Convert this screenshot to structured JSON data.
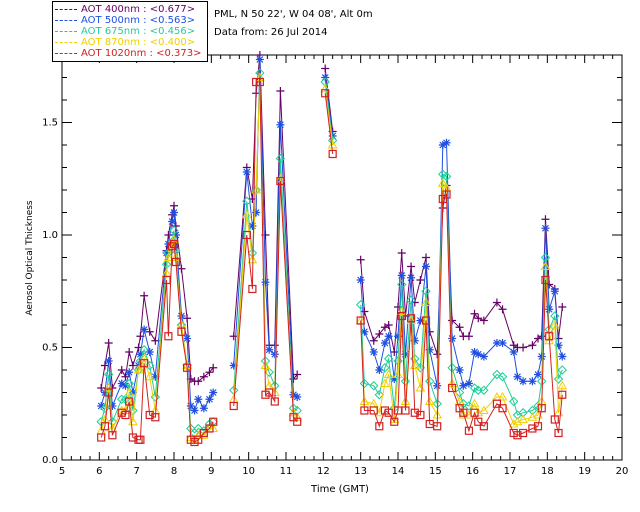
{
  "header": {
    "site_line": "PML, N 50 22', W 04 08', Alt 0m",
    "date_line": "Data from: 26 Jul 2014"
  },
  "legend": [
    {
      "label": "AOT  400nm : <0.677>",
      "color": "#660066",
      "marker": "plus"
    },
    {
      "label": "AOT  500nm : <0.563>",
      "color": "#1f4fe0",
      "marker": "asterisk"
    },
    {
      "label": "AOT  675nm : <0.456>",
      "color": "#22cc99",
      "marker": "diamond"
    },
    {
      "label": "AOT  870nm : <0.400>",
      "color": "#f0d000",
      "marker": "triangle"
    },
    {
      "label": "AOT 1020nm : <0.373>",
      "color": "#d42020",
      "marker": "square"
    }
  ],
  "chart_data": {
    "type": "line",
    "xlabel": "Time (GMT)",
    "ylabel": "Aerosol Optical Thickness",
    "xlim": [
      5,
      20
    ],
    "ylim": [
      0.0,
      1.8
    ],
    "x_ticks": [
      "5",
      "6",
      "7",
      "8",
      "9",
      "10",
      "11",
      "12",
      "13",
      "14",
      "15",
      "16",
      "17",
      "18",
      "19",
      "20"
    ],
    "y_ticks": [
      "0.0",
      "0.5",
      "1.0",
      "1.5"
    ],
    "x": [
      6.05,
      6.15,
      6.25,
      6.35,
      6.6,
      6.7,
      6.8,
      6.9,
      7.05,
      7.1,
      7.2,
      7.35,
      7.5,
      7.8,
      7.85,
      7.95,
      8.0,
      8.05,
      8.2,
      8.35,
      8.45,
      8.55,
      8.65,
      8.8,
      8.95,
      9.05,
      9.6,
      9.95,
      10.1,
      10.2,
      10.3,
      10.45,
      10.55,
      10.7,
      10.85,
      11.2,
      11.3,
      12.05,
      12.25,
      13.0,
      13.1,
      13.35,
      13.5,
      13.65,
      13.75,
      13.9,
      14.0,
      14.1,
      14.2,
      14.35,
      14.45,
      14.6,
      14.75,
      14.85,
      15.05,
      15.2,
      15.3,
      15.45,
      15.65,
      15.75,
      15.9,
      16.05,
      16.15,
      16.3,
      16.65,
      16.8,
      17.1,
      17.2,
      17.35,
      17.6,
      17.75,
      17.85,
      17.95,
      18.05,
      18.2,
      18.3,
      18.4
    ],
    "series": [
      {
        "name": "AOT 400nm",
        "values": [
          0.32,
          0.42,
          0.52,
          0.32,
          0.4,
          0.37,
          0.48,
          0.42,
          0.5,
          0.55,
          0.73,
          0.57,
          0.53,
          0.93,
          1.0,
          1.09,
          1.13,
          1.04,
          0.85,
          0.63,
          0.36,
          0.35,
          0.35,
          0.37,
          0.39,
          0.41,
          0.55,
          1.3,
          1.16,
          1.63,
          1.8,
          1.0,
          0.51,
          0.51,
          1.64,
          0.36,
          0.38,
          1.74,
          1.46,
          0.89,
          0.66,
          0.53,
          0.56,
          0.59,
          0.6,
          0.48,
          0.68,
          0.92,
          0.64,
          0.86,
          0.7,
          0.8,
          0.9,
          0.57,
          0.47,
          1.12,
          1.22,
          0.62,
          0.59,
          0.55,
          0.55,
          0.65,
          0.63,
          0.62,
          0.7,
          0.67,
          0.51,
          0.5,
          0.5,
          0.51,
          0.54,
          0.55,
          1.07,
          0.78,
          0.76,
          0.54,
          0.68
        ]
      },
      {
        "name": "AOT 500nm",
        "values": [
          0.24,
          0.3,
          0.44,
          0.24,
          0.34,
          0.33,
          0.39,
          0.3,
          0.42,
          0.47,
          0.58,
          0.48,
          0.37,
          0.92,
          0.96,
          1.06,
          1.1,
          1.0,
          0.64,
          0.54,
          0.24,
          0.22,
          0.27,
          0.23,
          0.27,
          0.3,
          0.42,
          1.28,
          1.04,
          1.1,
          1.78,
          0.79,
          0.49,
          0.47,
          1.49,
          0.29,
          0.28,
          1.7,
          1.44,
          0.8,
          0.57,
          0.48,
          0.4,
          0.52,
          0.55,
          0.36,
          0.55,
          0.82,
          0.47,
          0.81,
          0.53,
          0.62,
          0.86,
          0.49,
          0.33,
          1.4,
          1.41,
          0.54,
          0.4,
          0.33,
          0.34,
          0.48,
          0.47,
          0.46,
          0.52,
          0.52,
          0.48,
          0.37,
          0.35,
          0.35,
          0.38,
          0.46,
          1.03,
          0.67,
          0.75,
          0.51,
          0.46
        ]
      },
      {
        "name": "AOT 675nm",
        "values": [
          0.17,
          0.23,
          0.38,
          0.17,
          0.27,
          0.27,
          0.34,
          0.22,
          0.4,
          0.44,
          0.49,
          0.42,
          0.28,
          0.87,
          0.92,
          0.97,
          1.02,
          0.93,
          0.6,
          0.42,
          0.14,
          0.12,
          0.14,
          0.13,
          0.16,
          0.17,
          0.31,
          1.15,
          0.92,
          1.2,
          1.72,
          0.44,
          0.39,
          0.33,
          1.34,
          0.23,
          0.22,
          1.68,
          1.42,
          0.69,
          0.34,
          0.33,
          0.29,
          0.41,
          0.45,
          0.23,
          0.44,
          0.78,
          0.35,
          0.71,
          0.45,
          0.41,
          0.75,
          0.35,
          0.25,
          1.27,
          1.26,
          0.41,
          0.3,
          0.25,
          0.24,
          0.32,
          0.31,
          0.31,
          0.38,
          0.37,
          0.26,
          0.2,
          0.21,
          0.22,
          0.24,
          0.35,
          0.9,
          0.58,
          0.64,
          0.36,
          0.4
        ]
      },
      {
        "name": "AOT 870nm",
        "values": [
          0.13,
          0.18,
          0.32,
          0.14,
          0.22,
          0.22,
          0.3,
          0.17,
          0.4,
          0.4,
          0.45,
          0.37,
          0.22,
          0.83,
          0.9,
          0.94,
          0.98,
          0.9,
          0.6,
          0.42,
          0.1,
          0.09,
          0.11,
          0.11,
          0.14,
          0.14,
          0.27,
          1.09,
          0.89,
          1.2,
          1.7,
          0.42,
          0.33,
          0.3,
          1.25,
          0.21,
          0.19,
          1.65,
          1.4,
          0.62,
          0.26,
          0.25,
          0.21,
          0.34,
          0.38,
          0.18,
          0.38,
          0.66,
          0.26,
          0.62,
          0.42,
          0.32,
          0.7,
          0.26,
          0.2,
          1.23,
          1.21,
          0.34,
          0.26,
          0.2,
          0.2,
          0.25,
          0.21,
          0.22,
          0.28,
          0.28,
          0.16,
          0.17,
          0.18,
          0.19,
          0.2,
          0.26,
          0.86,
          0.53,
          0.6,
          0.21,
          0.33
        ]
      },
      {
        "name": "AOT 1020nm",
        "values": [
          0.1,
          0.15,
          0.3,
          0.11,
          0.21,
          0.2,
          0.26,
          0.1,
          0.09,
          0.09,
          0.43,
          0.2,
          0.19,
          0.8,
          0.55,
          0.95,
          0.96,
          0.88,
          0.57,
          0.41,
          0.09,
          0.08,
          0.09,
          0.12,
          0.14,
          0.17,
          0.24,
          1.0,
          0.76,
          1.68,
          1.68,
          0.29,
          0.3,
          0.26,
          1.24,
          0.19,
          0.17,
          1.63,
          1.36,
          0.62,
          0.22,
          0.22,
          0.15,
          0.22,
          0.21,
          0.17,
          0.22,
          0.64,
          0.22,
          0.63,
          0.21,
          0.2,
          0.62,
          0.16,
          0.15,
          1.16,
          1.18,
          0.32,
          0.23,
          0.21,
          0.13,
          0.21,
          0.17,
          0.15,
          0.25,
          0.23,
          0.12,
          0.11,
          0.12,
          0.14,
          0.15,
          0.23,
          0.8,
          0.55,
          0.18,
          0.12,
          0.29
        ]
      }
    ]
  }
}
